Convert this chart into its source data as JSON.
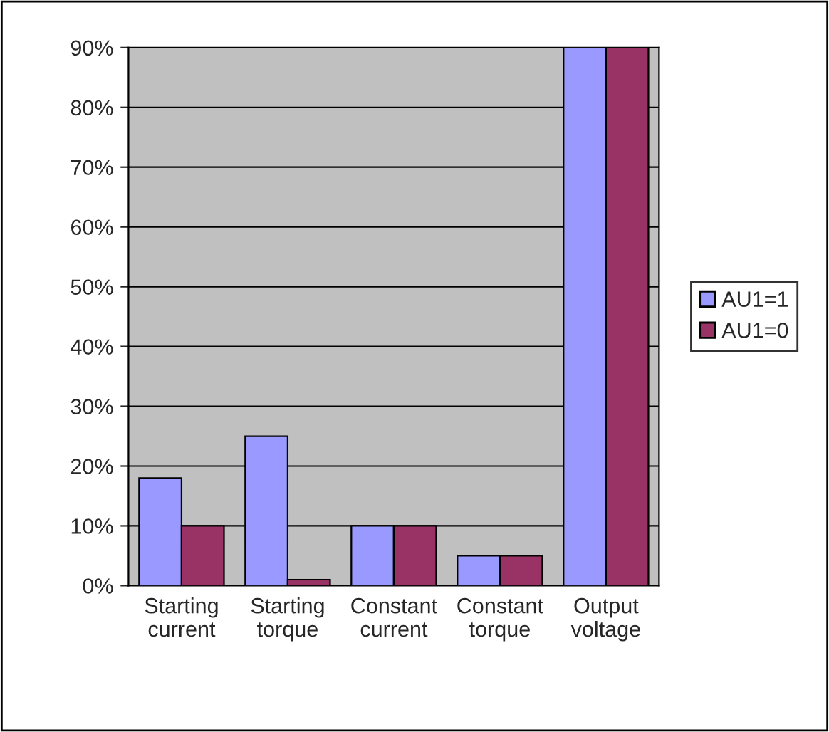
{
  "chart_data": {
    "type": "bar",
    "categories": [
      "Starting\ncurrent",
      "Starting\ntorque",
      "Constant\ncurrent",
      "Constant\ntorque",
      "Output\nvoltage"
    ],
    "series": [
      {
        "name": "AU1=1",
        "color": "#9999ff",
        "values": [
          18,
          25,
          10,
          5,
          90
        ]
      },
      {
        "name": "AU1=0",
        "color": "#993366",
        "values": [
          10,
          1,
          10,
          5,
          90
        ]
      }
    ],
    "ylim": [
      0,
      90
    ],
    "yticks": [
      {
        "value": 0,
        "label": "0%"
      },
      {
        "value": 10,
        "label": "10%"
      },
      {
        "value": 20,
        "label": "20%"
      },
      {
        "value": 30,
        "label": "30%"
      },
      {
        "value": 40,
        "label": "40%"
      },
      {
        "value": 50,
        "label": "50%"
      },
      {
        "value": 60,
        "label": "60%"
      },
      {
        "value": 70,
        "label": "70%"
      },
      {
        "value": 80,
        "label": "80%"
      },
      {
        "value": 90,
        "label": "90%"
      }
    ],
    "grid": "y",
    "legend": "right"
  }
}
